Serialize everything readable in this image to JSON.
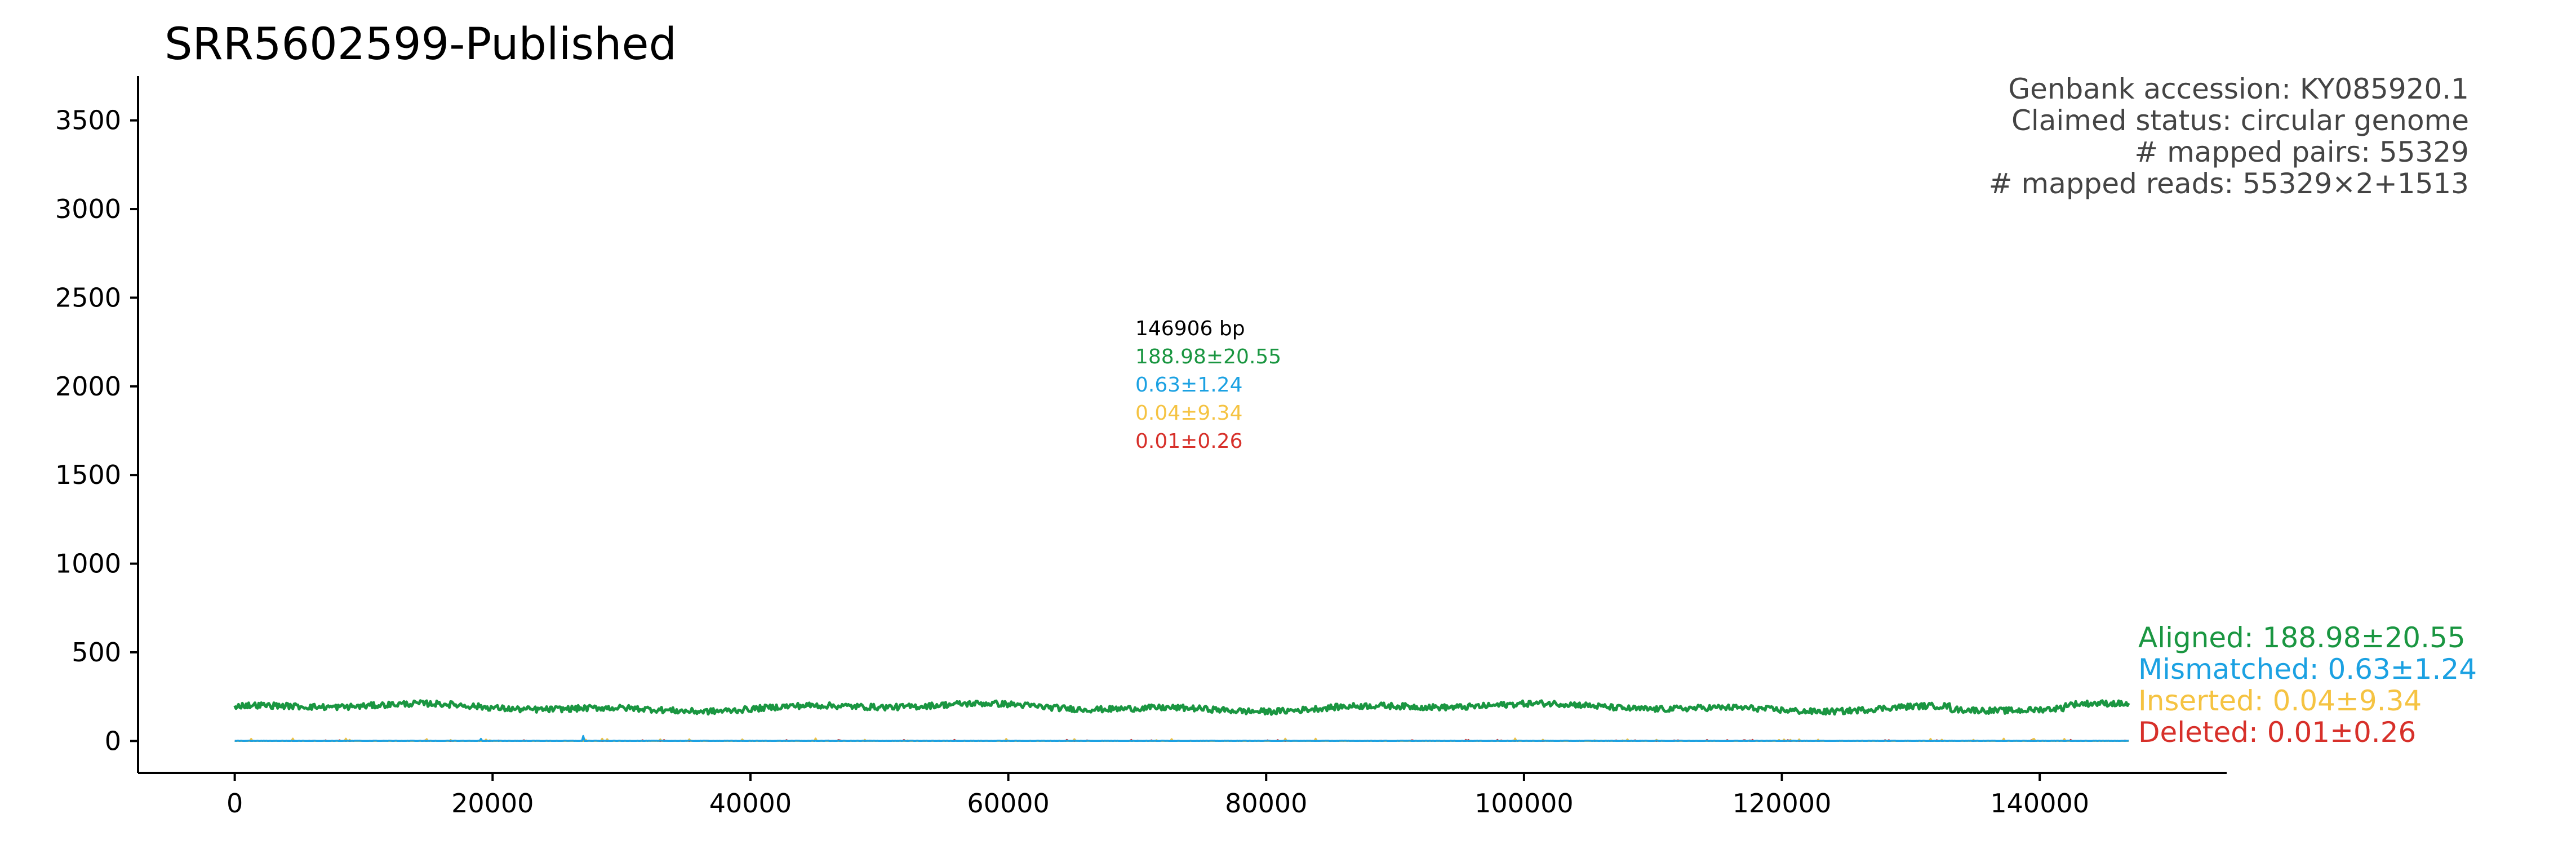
{
  "chart_data": {
    "type": "line",
    "title": "SRR5602599-Published",
    "xlabel": "",
    "ylabel": "",
    "xlim": [
      -7500,
      154500
    ],
    "ylim": [
      -180,
      3750
    ],
    "x_ticks": [
      0,
      20000,
      40000,
      60000,
      80000,
      100000,
      120000,
      140000
    ],
    "y_ticks": [
      0,
      500,
      1000,
      1500,
      2000,
      2500,
      3000,
      3500
    ],
    "grid": false,
    "genome_length": 146906,
    "info": {
      "lines": [
        "Genbank accession: KY085920.1",
        "Claimed status: circular genome",
        "# mapped pairs: 55329",
        "# mapped reads: 55329×2+1513"
      ]
    },
    "center_stats": {
      "length_label": "146906 bp",
      "aligned": "188.98±20.55",
      "mismatched": "0.63±1.24",
      "inserted": "0.04±9.34",
      "deleted": "0.01±0.26"
    },
    "series": [
      {
        "name": "Aligned: 188.98±20.55",
        "color": "#1a9641",
        "mean": 188.98,
        "sd": 20.55
      },
      {
        "name": "Mismatched: 0.63±1.24",
        "color": "#1ba1e2",
        "mean": 0.63,
        "sd": 1.24
      },
      {
        "name": "Inserted: 0.04±9.34",
        "color": "#f5c342",
        "mean": 0.04,
        "sd": 9.34
      },
      {
        "name": "Deleted: 0.01±0.26",
        "color": "#d7302a",
        "mean": 0.01,
        "sd": 0.26
      }
    ],
    "legend_position": "lower-right outside"
  }
}
